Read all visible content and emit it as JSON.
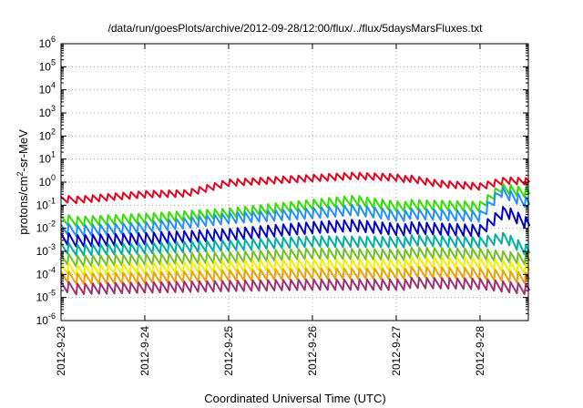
{
  "chart_data": {
    "type": "line",
    "title": "/data/run/goesPlots/archive/2012-09-28/12:00/flux/../flux/5daysMarsFluxes.txt",
    "xlabel": "Coordinated Universal Time (UTC)",
    "ylabel_main": "protons/cm",
    "ylabel_sup": "2",
    "ylabel_rest": "-sr-MeV",
    "yscale": "log",
    "ylim_exp": [
      -6,
      6
    ],
    "y_tick_base": "10",
    "y_tick_exponents": [
      "-6",
      "-5",
      "-4",
      "-3",
      "-2",
      "-1",
      "0",
      "1",
      "2",
      "3",
      "4",
      "5",
      "6"
    ],
    "x_tick_labels": [
      "2012-9-23",
      "2012-9-24",
      "2012-9-25",
      "2012-9-26",
      "2012-9-27",
      "2012-9-28"
    ],
    "x_range_days": [
      0,
      5.6
    ],
    "grid": true,
    "cycles_per_day": 11,
    "series": [
      {
        "color": "#e8001c",
        "base": [
          [
            0,
            0.16
          ],
          [
            1,
            0.32
          ],
          [
            1.5,
            0.35
          ],
          [
            2,
            1.0
          ],
          [
            3,
            1.6
          ],
          [
            3.5,
            2.0
          ],
          [
            4,
            1.7
          ],
          [
            4.5,
            0.8
          ],
          [
            5,
            0.6
          ],
          [
            5.3,
            1.1
          ],
          [
            5.6,
            1.0
          ]
        ],
        "amp": 0.35
      },
      {
        "color": "#2fe000",
        "base": [
          [
            0,
            0.02
          ],
          [
            1,
            0.03
          ],
          [
            2,
            0.05
          ],
          [
            3,
            0.12
          ],
          [
            3.5,
            0.18
          ],
          [
            4,
            0.1
          ],
          [
            5,
            0.08
          ],
          [
            5.25,
            0.5
          ],
          [
            5.6,
            0.3
          ]
        ],
        "amp": 0.5
      },
      {
        "color": "#2090ff",
        "base": [
          [
            0,
            0.008
          ],
          [
            1,
            0.012
          ],
          [
            2,
            0.03
          ],
          [
            3,
            0.05
          ],
          [
            3.5,
            0.07
          ],
          [
            4,
            0.04
          ],
          [
            5,
            0.03
          ],
          [
            5.25,
            0.35
          ],
          [
            5.6,
            0.1
          ]
        ],
        "amp": 0.55
      },
      {
        "color": "#0000cc",
        "base": [
          [
            0,
            0.003
          ],
          [
            1,
            0.004
          ],
          [
            2,
            0.006
          ],
          [
            3,
            0.012
          ],
          [
            3.5,
            0.015
          ],
          [
            4,
            0.01
          ],
          [
            5,
            0.007
          ],
          [
            5.3,
            0.05
          ],
          [
            5.6,
            0.012
          ]
        ],
        "amp": 0.6
      },
      {
        "color": "#00b0a0",
        "base": [
          [
            0,
            0.0012
          ],
          [
            1,
            0.0015
          ],
          [
            2,
            0.002
          ],
          [
            3,
            0.003
          ],
          [
            4,
            0.0028
          ],
          [
            5,
            0.0022
          ],
          [
            5.3,
            0.0035
          ],
          [
            5.6,
            0.0008
          ]
        ],
        "amp": 0.55
      },
      {
        "color": "#70c020",
        "base": [
          [
            0,
            0.0004
          ],
          [
            1,
            0.0005
          ],
          [
            2,
            0.0006
          ],
          [
            3,
            0.0009
          ],
          [
            4,
            0.0008
          ],
          [
            5,
            0.0007
          ],
          [
            5.6,
            0.0004
          ]
        ],
        "amp": 0.55
      },
      {
        "color": "#f0f000",
        "base": [
          [
            0,
            0.00016
          ],
          [
            1,
            0.0002
          ],
          [
            2,
            0.00025
          ],
          [
            3,
            0.0003
          ],
          [
            4,
            0.0003
          ],
          [
            5,
            0.00028
          ],
          [
            5.6,
            0.00015
          ]
        ],
        "amp": 0.55
      },
      {
        "color": "#f0a000",
        "base": [
          [
            0,
            7e-05
          ],
          [
            1,
            8e-05
          ],
          [
            2,
            0.0001
          ],
          [
            3,
            0.00012
          ],
          [
            4,
            0.00012
          ],
          [
            5,
            0.0001
          ],
          [
            5.6,
            6e-05
          ]
        ],
        "amp": 0.55
      },
      {
        "color": "#a03070",
        "base": [
          [
            0,
            2.5e-05
          ],
          [
            1,
            3e-05
          ],
          [
            2,
            3.5e-05
          ],
          [
            3,
            4e-05
          ],
          [
            4,
            4e-05
          ],
          [
            5,
            3.5e-05
          ],
          [
            5.6,
            2e-05
          ]
        ],
        "amp": 0.55
      }
    ]
  }
}
